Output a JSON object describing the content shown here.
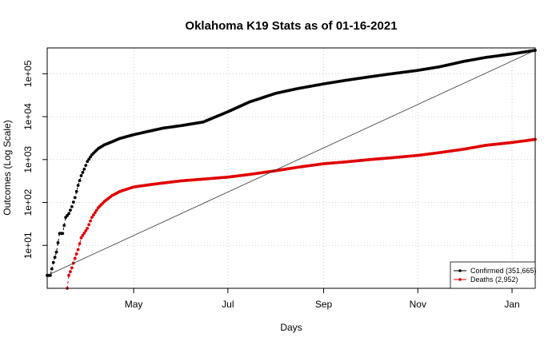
{
  "chart_data": {
    "type": "line",
    "title": "Oklahoma K19 Stats as of 01-16-2021",
    "xlabel": "Days",
    "ylabel": "Outcomes (Log Scale)",
    "y_scale": "log10",
    "ylim": [
      1,
      400000
    ],
    "xlim": [
      "2020-03-06",
      "2021-01-16"
    ],
    "x_ticks": [
      {
        "date": "2020-05-01",
        "label": "May"
      },
      {
        "date": "2020-07-01",
        "label": "Jul"
      },
      {
        "date": "2020-09-01",
        "label": "Sep"
      },
      {
        "date": "2020-11-01",
        "label": "Nov"
      },
      {
        "date": "2021-01-01",
        "label": "Jan"
      }
    ],
    "y_ticks": [
      {
        "value": 10,
        "label": "1e+01"
      },
      {
        "value": 100,
        "label": "1e+02"
      },
      {
        "value": 1000,
        "label": "1e+03"
      },
      {
        "value": 10000,
        "label": "1e+04"
      },
      {
        "value": 100000,
        "label": "1e+05"
      }
    ],
    "grid": true,
    "legend": {
      "position": "bottom-right",
      "entries": [
        {
          "label": "Confirmed (351,665)",
          "color": "#000000"
        },
        {
          "label": "Deaths (2,952)",
          "color": "#e00000"
        }
      ]
    },
    "series": [
      {
        "color": "#000000",
        "points": [
          [
            "2020-03-06",
            2
          ],
          [
            "2020-03-08",
            2
          ],
          [
            "2020-03-10",
            4
          ],
          [
            "2020-03-12",
            7
          ],
          [
            "2020-03-14",
            19
          ],
          [
            "2020-03-16",
            19
          ],
          [
            "2020-03-18",
            45
          ],
          [
            "2020-03-20",
            55
          ],
          [
            "2020-03-22",
            80
          ],
          [
            "2020-03-24",
            130
          ],
          [
            "2020-03-26",
            250
          ],
          [
            "2020-03-28",
            420
          ],
          [
            "2020-03-30",
            600
          ],
          [
            "2020-04-01",
            900
          ],
          [
            "2020-04-04",
            1300
          ],
          [
            "2020-04-08",
            1800
          ],
          [
            "2020-04-12",
            2200
          ],
          [
            "2020-04-17",
            2600
          ],
          [
            "2020-04-22",
            3100
          ],
          [
            "2020-05-01",
            3800
          ],
          [
            "2020-05-10",
            4500
          ],
          [
            "2020-05-20",
            5400
          ],
          [
            "2020-06-01",
            6200
          ],
          [
            "2020-06-15",
            7500
          ],
          [
            "2020-07-01",
            13000
          ],
          [
            "2020-07-15",
            22000
          ],
          [
            "2020-08-01",
            35000
          ],
          [
            "2020-08-15",
            45000
          ],
          [
            "2020-09-01",
            58000
          ],
          [
            "2020-09-15",
            70000
          ],
          [
            "2020-10-01",
            85000
          ],
          [
            "2020-10-15",
            100000
          ],
          [
            "2020-11-01",
            120000
          ],
          [
            "2020-11-15",
            145000
          ],
          [
            "2020-12-01",
            195000
          ],
          [
            "2020-12-15",
            240000
          ],
          [
            "2021-01-01",
            290000
          ],
          [
            "2021-01-16",
            351665
          ]
        ]
      },
      {
        "color": "#e00000",
        "points": [
          [
            "2020-03-19",
            1
          ],
          [
            "2020-03-20",
            2
          ],
          [
            "2020-03-22",
            3
          ],
          [
            "2020-03-24",
            5
          ],
          [
            "2020-03-26",
            8
          ],
          [
            "2020-03-28",
            15
          ],
          [
            "2020-04-01",
            25
          ],
          [
            "2020-04-04",
            45
          ],
          [
            "2020-04-08",
            75
          ],
          [
            "2020-04-12",
            105
          ],
          [
            "2020-04-17",
            145
          ],
          [
            "2020-04-22",
            180
          ],
          [
            "2020-05-01",
            230
          ],
          [
            "2020-05-15",
            270
          ],
          [
            "2020-06-01",
            320
          ],
          [
            "2020-06-15",
            350
          ],
          [
            "2020-07-01",
            390
          ],
          [
            "2020-07-15",
            450
          ],
          [
            "2020-08-01",
            550
          ],
          [
            "2020-08-15",
            660
          ],
          [
            "2020-09-01",
            800
          ],
          [
            "2020-09-15",
            880
          ],
          [
            "2020-10-01",
            1000
          ],
          [
            "2020-10-15",
            1100
          ],
          [
            "2020-11-01",
            1250
          ],
          [
            "2020-11-15",
            1450
          ],
          [
            "2020-12-01",
            1750
          ],
          [
            "2020-12-15",
            2150
          ],
          [
            "2021-01-01",
            2500
          ],
          [
            "2021-01-16",
            2952
          ]
        ]
      },
      {
        "color": "#333333",
        "style": "reference-line",
        "points": [
          [
            "2020-03-06",
            2
          ],
          [
            "2021-01-16",
            351665
          ]
        ]
      }
    ]
  }
}
